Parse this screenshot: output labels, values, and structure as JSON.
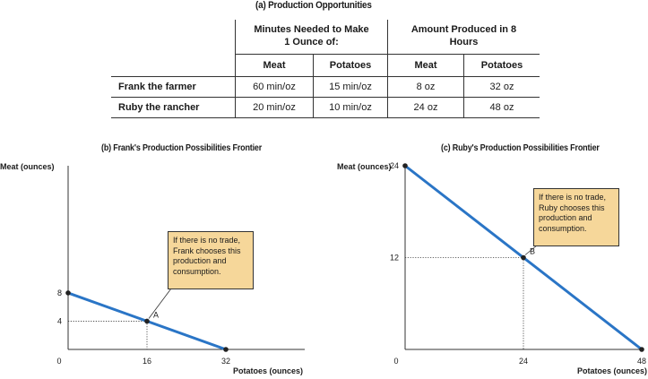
{
  "table": {
    "title": "(a) Production Opportunities",
    "group_headers": [
      "Minutes Needed to Make 1 Ounce of:",
      "Amount Produced in 8 Hours"
    ],
    "columns": [
      "Meat",
      "Potatoes",
      "Meat",
      "Potatoes"
    ],
    "rows": [
      {
        "name": "Frank the farmer",
        "cells": [
          "60 min/oz",
          "15 min/oz",
          "8 oz",
          "32 oz"
        ]
      },
      {
        "name": "Ruby the rancher",
        "cells": [
          "20 min/oz",
          "10 min/oz",
          "24 oz",
          "48 oz"
        ]
      }
    ]
  },
  "chart_data": [
    {
      "type": "line",
      "title": "(b) Frank's Production Possibilities Frontier",
      "xlabel": "Potatoes (ounces)",
      "ylabel": "Meat (ounces)",
      "xlim": [
        0,
        48
      ],
      "ylim": [
        0,
        26
      ],
      "x_ticks": [
        0,
        16,
        32
      ],
      "y_ticks": [
        4,
        8
      ],
      "x_tick_labels": [
        "0",
        "16",
        "32"
      ],
      "y_tick_labels": [
        "4",
        "8"
      ],
      "series": [
        {
          "x": [
            0,
            32
          ],
          "y": [
            8,
            0
          ],
          "color": "#2a75c6"
        }
      ],
      "point": {
        "label": "A",
        "x": 16,
        "y": 4
      },
      "annotation": "If there is no trade, Frank chooses this production and consumption.",
      "grid": false
    },
    {
      "type": "line",
      "title": "(c) Ruby's Production Possibilities Frontier",
      "xlabel": "Potatoes (ounces)",
      "ylabel": "Meat (ounces)",
      "xlim": [
        0,
        48
      ],
      "ylim": [
        0,
        24
      ],
      "x_ticks": [
        0,
        24,
        48
      ],
      "y_ticks": [
        12,
        24
      ],
      "x_tick_labels": [
        "0",
        "24",
        "48"
      ],
      "y_tick_labels": [
        "12",
        "24"
      ],
      "series": [
        {
          "x": [
            0,
            48
          ],
          "y": [
            24,
            0
          ],
          "color": "#2a75c6"
        }
      ],
      "point": {
        "label": "B",
        "x": 24,
        "y": 12
      },
      "annotation": "If there is no trade, Ruby chooses this production and consumption.",
      "grid": false
    }
  ]
}
